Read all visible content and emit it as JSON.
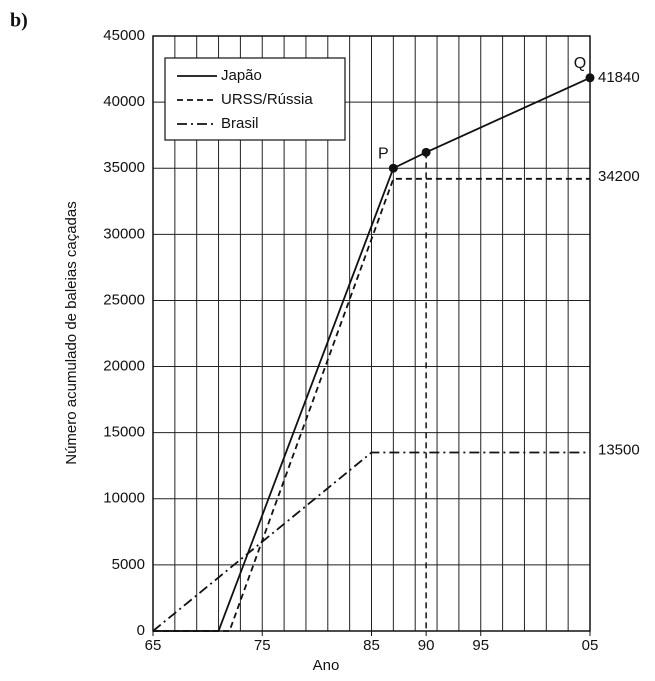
{
  "chart_data": {
    "type": "line",
    "panel_label": "b)",
    "xlabel": "Ano",
    "ylabel": "Número acumulado de baleias caçadas",
    "xlim": [
      1965,
      2005
    ],
    "ylim": [
      0,
      45000
    ],
    "xticks": [
      {
        "value": 1965,
        "label": "65"
      },
      {
        "value": 1975,
        "label": "75"
      },
      {
        "value": 1985,
        "label": "85"
      },
      {
        "value": 1990,
        "label": "90"
      },
      {
        "value": 1995,
        "label": "95"
      },
      {
        "value": 2005,
        "label": "05"
      }
    ],
    "yticks": [
      0,
      5000,
      10000,
      15000,
      20000,
      25000,
      30000,
      35000,
      40000,
      45000
    ],
    "xgrid": [
      1965,
      1967,
      1969,
      1971,
      1973,
      1975,
      1977,
      1979,
      1981,
      1983,
      1985,
      1987,
      1989,
      1991,
      1993,
      1995,
      1997,
      1999,
      2001,
      2003,
      2005
    ],
    "grid": true,
    "legend": "upper left",
    "vlines": [
      1990
    ],
    "series": [
      {
        "name": "Japão",
        "color": "#111111",
        "dash": "solid",
        "x": [
          1965,
          1971,
          1987,
          1990,
          2005
        ],
        "values": [
          0,
          0,
          35000,
          36200,
          41840
        ],
        "markers": [
          2,
          3,
          4
        ],
        "point_labels": [
          null,
          null,
          "P",
          null,
          "Q"
        ],
        "value_labels": [
          null,
          null,
          null,
          null,
          "41840"
        ]
      },
      {
        "name": "URSS/Rússia",
        "color": "#111111",
        "dash": "dashed",
        "x": [
          1965,
          1972,
          1987,
          2005
        ],
        "values": [
          0,
          0,
          34200,
          34200
        ],
        "value_labels": [
          null,
          null,
          null,
          "34200"
        ]
      },
      {
        "name": "Brasil",
        "color": "#111111",
        "dash": "dashdot",
        "x": [
          1965,
          1985,
          2005
        ],
        "values": [
          0,
          13500,
          13500
        ],
        "value_labels": [
          null,
          null,
          "13500"
        ]
      }
    ]
  }
}
